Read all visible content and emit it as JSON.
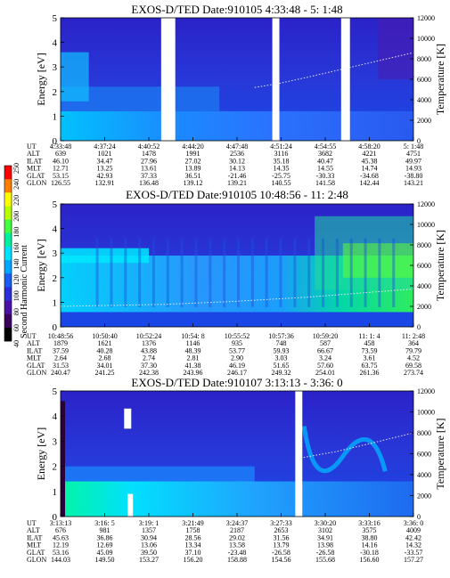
{
  "colorbar": {
    "label": "Second Harmonic Current",
    "ticks": [
      "40",
      "60",
      "80",
      "100",
      "120",
      "140",
      "160",
      "180",
      "200",
      "220",
      "240",
      "250"
    ],
    "colors": [
      "#000000",
      "#3a005e",
      "#4b12a8",
      "#2a2fd8",
      "#1a5bf0",
      "#00a6ff",
      "#00e0ff",
      "#00f0a0",
      "#40ff40",
      "#b8ff00",
      "#ffff00",
      "#ff8000",
      "#ff0000"
    ]
  },
  "chart_data": [
    {
      "type": "heatmap",
      "title": "EXOS-D/TED   Date:910105  4:33:48 - 5: 1:48",
      "ylabel": "Energy [eV]",
      "y2label": "Temperature [K]",
      "ylim": [
        0,
        5
      ],
      "y2lim": [
        0,
        12000
      ],
      "yticks": [
        "0",
        "1",
        "2",
        "3",
        "4",
        "5"
      ],
      "y2ticks": [
        "0",
        "2000",
        "4000",
        "6000",
        "8000",
        "10000",
        "12000"
      ],
      "data_gaps": [
        [
          0.285,
          0.325
        ],
        [
          0.6,
          0.62
        ],
        [
          0.795,
          0.82
        ]
      ],
      "temperature_trace": [
        [
          0.55,
          5200
        ],
        [
          0.62,
          5600
        ],
        [
          0.7,
          6200
        ],
        [
          0.8,
          7000
        ],
        [
          0.9,
          7800
        ],
        [
          1.0,
          8600
        ]
      ],
      "orbit_rows": [
        "UT",
        "ALT",
        "ILAT",
        "MLT",
        "GLAT",
        "GLON"
      ],
      "orbit_columns": [
        [
          "4:33:48",
          "639",
          "46.10",
          "12.71",
          "53.15",
          "126.55"
        ],
        [
          "4:37:24",
          "1021",
          "34.47",
          "13.25",
          "42.93",
          "132.91"
        ],
        [
          "4:40:52",
          "1478",
          "27.96",
          "13.61",
          "37.33",
          "136.48"
        ],
        [
          "4:44:20",
          "1991",
          "27.02",
          "13.89",
          "36.51",
          "139.12"
        ],
        [
          "4:47:48",
          "2536",
          "30.12",
          "14.13",
          "-21.46",
          "139.21"
        ],
        [
          "4:51:24",
          "3116",
          "35.18",
          "14.35",
          "-25.75",
          "140.55"
        ],
        [
          "4:54:55",
          "3682",
          "40.47",
          "14.55",
          "-30.33",
          "141.58"
        ],
        [
          "4:58:20",
          "4221",
          "45.38",
          "14.74",
          "-34.68",
          "142.44"
        ],
        [
          "5: 1:48",
          "4751",
          "49.97",
          "14.93",
          "-38.80",
          "143.21"
        ]
      ]
    },
    {
      "type": "heatmap",
      "title": "EXOS-D/TED   Date:910105  10:48:56 - 11: 2:48",
      "ylabel": "Energy [eV]",
      "y2label": "Temperature [K]",
      "ylim": [
        0,
        5
      ],
      "y2lim": [
        0,
        12000
      ],
      "yticks": [
        "0",
        "1",
        "2",
        "3",
        "4",
        "5"
      ],
      "y2ticks": [
        "0",
        "2000",
        "4000",
        "6000",
        "8000",
        "10000",
        "12000"
      ],
      "data_gaps": [],
      "temperature_trace": [
        [
          0.0,
          2000
        ],
        [
          0.3,
          2200
        ],
        [
          0.5,
          2500
        ],
        [
          0.7,
          2900
        ],
        [
          0.85,
          3300
        ],
        [
          1.0,
          3700
        ]
      ],
      "orbit_rows": [
        "UT",
        "ALT",
        "ILAT",
        "MLT",
        "GLAT",
        "GLON"
      ],
      "orbit_columns": [
        [
          "10:48:56",
          "1879",
          "37.59",
          "2.64",
          "31.53",
          "240.47"
        ],
        [
          "10:50:40",
          "1621",
          "40.28",
          "2.68",
          "34.01",
          "241.25"
        ],
        [
          "10:52:24",
          "1376",
          "43.88",
          "2.74",
          "37.30",
          "242.38"
        ],
        [
          "10:54: 8",
          "1146",
          "48.39",
          "2.81",
          "41.38",
          "243.96"
        ],
        [
          "10:55:52",
          "935",
          "53.77",
          "2.90",
          "46.19",
          "246.17"
        ],
        [
          "10:57:36",
          "748",
          "59.93",
          "3.03",
          "51.65",
          "249.32"
        ],
        [
          "10:59:20",
          "587",
          "66.67",
          "3.24",
          "57.60",
          "254.01"
        ],
        [
          "11: 1: 4",
          "458",
          "73.59",
          "3.61",
          "63.75",
          "261.36"
        ],
        [
          "11: 2:48",
          "364",
          "79.79",
          "4.52",
          "69.58",
          "273.74"
        ]
      ]
    },
    {
      "type": "heatmap",
      "title": "EXOS-D/TED   Date:910107  3:13:13 - 3:36: 0",
      "ylabel": "Energy [eV]",
      "y2label": "Temperature [K]",
      "ylim": [
        0,
        5
      ],
      "y2lim": [
        0,
        12000
      ],
      "yticks": [
        "0",
        "1",
        "2",
        "3",
        "4",
        "5"
      ],
      "y2ticks": [
        "0",
        "2000",
        "4000",
        "6000",
        "8000",
        "10000",
        "12000"
      ],
      "data_gaps": [
        [
          0.665,
          0.685
        ]
      ],
      "temperature_trace": [
        [
          0.68,
          5600
        ],
        [
          0.78,
          6200
        ],
        [
          0.88,
          7000
        ],
        [
          1.0,
          8000
        ]
      ],
      "orbit_rows": [
        "UT",
        "ALT",
        "ILAT",
        "MLT",
        "GLAT",
        "GLON"
      ],
      "orbit_columns": [
        [
          "3:13:13",
          "676",
          "45.63",
          "12.19",
          "53.16",
          "144.03"
        ],
        [
          "3:16: 5",
          "981",
          "36.86",
          "12.69",
          "45.09",
          "149.50"
        ],
        [
          "3:19: 1",
          "1357",
          "30.94",
          "13.06",
          "39.50",
          "153.27"
        ],
        [
          "3:21:49",
          "1758",
          "28.56",
          "13.34",
          "37.10",
          "156.20"
        ],
        [
          "3:24:37",
          "2187",
          "29.02",
          "13.58",
          "-23.48",
          "158.88"
        ],
        [
          "3:27:33",
          "2653",
          "31.56",
          "13.79",
          "-26.58",
          "154.56"
        ],
        [
          "3:30:20",
          "3102",
          "34.91",
          "13.98",
          "-26.58",
          "155.68"
        ],
        [
          "3:33:16",
          "3575",
          "38.80",
          "14.16",
          "-30.18",
          "156.60"
        ],
        [
          "3:36: 0",
          "4009",
          "42.42",
          "14.32",
          "-33.57",
          "157.27"
        ]
      ]
    }
  ]
}
